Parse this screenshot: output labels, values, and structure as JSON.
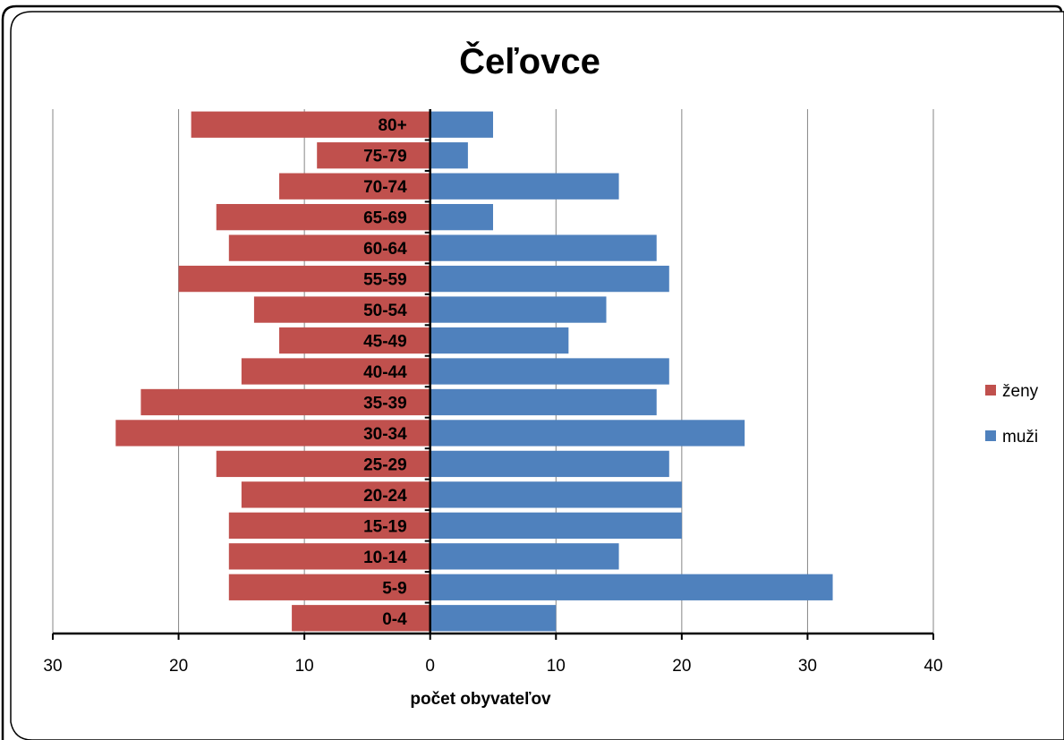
{
  "chart_data": {
    "type": "bar",
    "orientation": "horizontal-population-pyramid",
    "title": "Čeľovce",
    "xlabel": "počet obyvateľov",
    "xlim": [
      -30,
      40
    ],
    "xticks": [
      -30,
      -20,
      -10,
      0,
      10,
      20,
      30,
      40
    ],
    "xtick_labels": [
      "30",
      "20",
      "10",
      "0",
      "10",
      "20",
      "30",
      "40"
    ],
    "grid": true,
    "legend_position": "right",
    "categories": [
      "0-4",
      "5-9",
      "10-14",
      "15-19",
      "20-24",
      "25-29",
      "30-34",
      "35-39",
      "40-44",
      "45-49",
      "50-54",
      "55-59",
      "60-64",
      "65-69",
      "70-74",
      "75-79",
      "80+"
    ],
    "series": [
      {
        "name": "ženy",
        "color": "#c0504d",
        "direction": "left",
        "values": [
          11,
          16,
          16,
          16,
          15,
          17,
          25,
          23,
          15,
          12,
          14,
          20,
          16,
          17,
          12,
          9,
          19
        ]
      },
      {
        "name": "muži",
        "color": "#4f81bd",
        "direction": "right",
        "values": [
          10,
          32,
          15,
          20,
          20,
          19,
          25,
          18,
          19,
          11,
          14,
          19,
          18,
          5,
          15,
          3,
          5
        ]
      }
    ]
  }
}
